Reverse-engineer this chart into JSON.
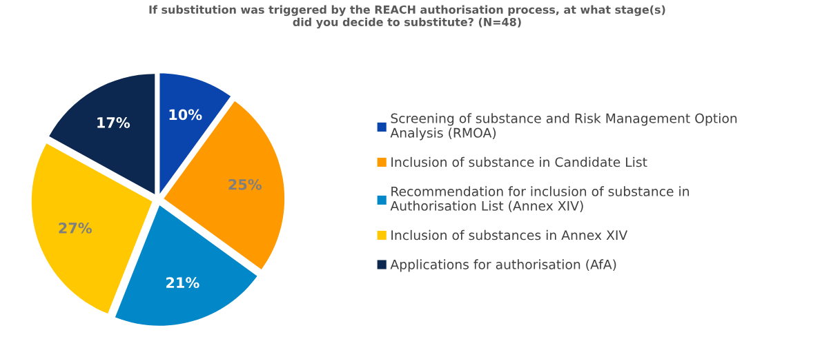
{
  "chart_data": {
    "type": "pie",
    "title": "If substitution was triggered by the REACH authorisation process, at what stage(s)\ndid you decide to substitute? (N=48)",
    "categories": [
      "Screening of substance and Risk Management Option\nAnalysis (RMOA)",
      "Inclusion of substance in Candidate List",
      "Recommendation for inclusion of substance in\nAuthorisation List (Annex XIV)",
      "Inclusion of substances in Annex XIV",
      "Applications for authorisation (AfA)"
    ],
    "values": [
      10,
      25,
      21,
      27,
      17
    ],
    "value_labels": [
      "10%",
      "25%",
      "21%",
      "27%",
      "17%"
    ],
    "colors": [
      "#0a45ad",
      "#ff9900",
      "#0288c8",
      "#ffc800",
      "#0c2850"
    ],
    "legend": "right"
  }
}
